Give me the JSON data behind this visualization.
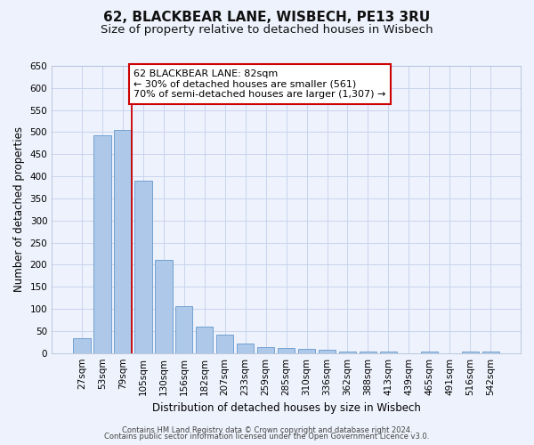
{
  "title": "62, BLACKBEAR LANE, WISBECH, PE13 3RU",
  "subtitle": "Size of property relative to detached houses in Wisbech",
  "xlabel": "Distribution of detached houses by size in Wisbech",
  "ylabel": "Number of detached properties",
  "bar_labels": [
    "27sqm",
    "53sqm",
    "79sqm",
    "105sqm",
    "130sqm",
    "156sqm",
    "182sqm",
    "207sqm",
    "233sqm",
    "259sqm",
    "285sqm",
    "310sqm",
    "336sqm",
    "362sqm",
    "388sqm",
    "413sqm",
    "439sqm",
    "465sqm",
    "491sqm",
    "516sqm",
    "542sqm"
  ],
  "bar_values": [
    33,
    492,
    505,
    390,
    210,
    107,
    60,
    41,
    21,
    14,
    11,
    10,
    8,
    4,
    4,
    4,
    0,
    4,
    0,
    4,
    4
  ],
  "bar_color": "#adc8e8",
  "bar_edge_color": "#6699cc",
  "annotation_line1": "62 BLACKBEAR LANE: 82sqm",
  "annotation_line2": "← 30% of detached houses are smaller (561)",
  "annotation_line3": "70% of semi-detached houses are larger (1,307) →",
  "vline_color": "#cc0000",
  "annotation_box_color": "#cc0000",
  "ylim": [
    0,
    650
  ],
  "yticks": [
    0,
    50,
    100,
    150,
    200,
    250,
    300,
    350,
    400,
    450,
    500,
    550,
    600,
    650
  ],
  "footer_line1": "Contains HM Land Registry data © Crown copyright and database right 2024.",
  "footer_line2": "Contains public sector information licensed under the Open Government Licence v3.0.",
  "background_color": "#eef2fc",
  "grid_color": "#c8d4ee",
  "title_fontsize": 11,
  "subtitle_fontsize": 9.5,
  "axis_label_fontsize": 8.5,
  "tick_fontsize": 7.5,
  "footer_fontsize": 6,
  "annot_fontsize": 8
}
